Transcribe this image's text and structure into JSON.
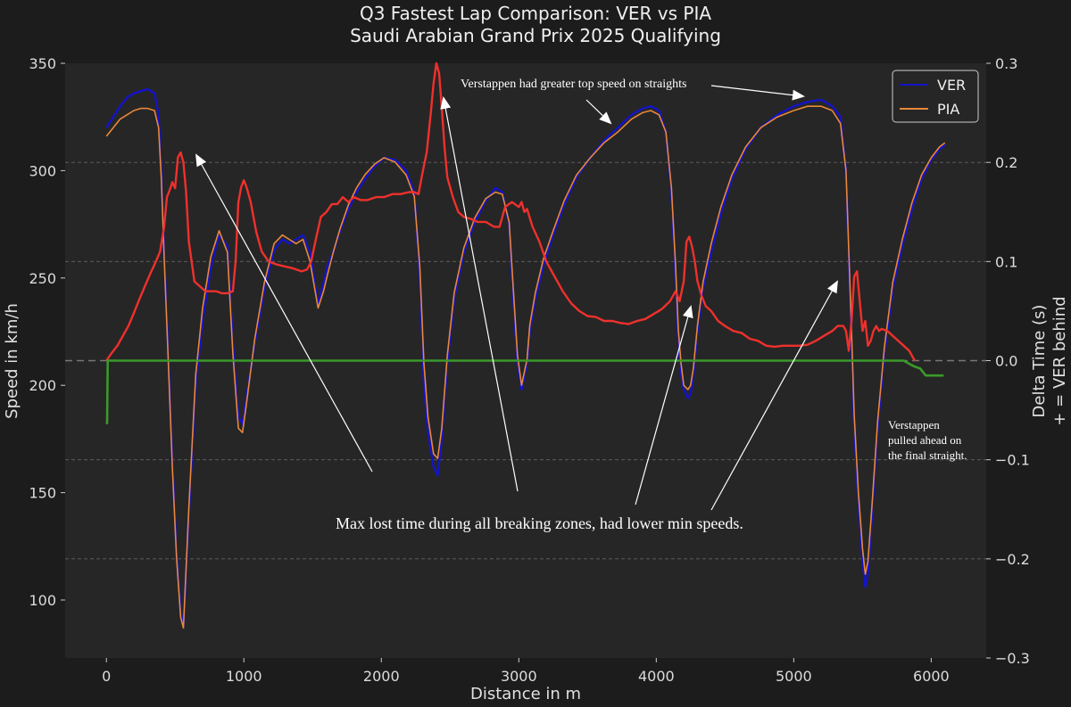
{
  "colors": {
    "background": "#1c1c1c",
    "plot_bg": "#262626",
    "ver": "#1414c8",
    "pia": "#e8883a",
    "delta": "#f0302c",
    "delta_neg": "#3a9a2a",
    "grid": "#8c8c8c",
    "text": "#e6e6e6"
  },
  "chart_data": {
    "type": "line",
    "title": "Q3 Fastest Lap Comparison: VER vs PIA",
    "subtitle": "Saudi Arabian Grand Prix 2025 Qualifying",
    "xlabel": "Distance in m",
    "ylabel": "Speed in km/h",
    "y2label_line1": "Delta Time (s)",
    "y2label_line2": "+ = VER behind",
    "xlim": [
      -300,
      6400
    ],
    "ylim": [
      73,
      350
    ],
    "y2lim": [
      -0.3,
      0.3
    ],
    "xticks": [
      0,
      1000,
      2000,
      3000,
      4000,
      5000,
      6000
    ],
    "yticks": [
      100,
      150,
      200,
      250,
      300,
      350
    ],
    "y2ticks": [
      -0.3,
      -0.2,
      -0.1,
      0.0,
      0.1,
      0.2,
      0.3
    ],
    "y2tick_labels": [
      "−0.3",
      "−0.2",
      "−0.1",
      "0.0",
      "0.1",
      "0.2",
      "0.3"
    ],
    "y2_gridlines": [
      -0.2,
      -0.1,
      0.0,
      0.1,
      0.2
    ],
    "legend": {
      "position": "top-right",
      "entries": [
        "VER",
        "PIA"
      ]
    },
    "series": [
      {
        "name": "VER",
        "x": [
          0,
          50,
          100,
          150,
          200,
          250,
          300,
          350,
          380,
          400,
          420,
          450,
          480,
          510,
          540,
          560,
          600,
          650,
          700,
          760,
          820,
          880,
          920,
          960,
          990,
          1020,
          1080,
          1150,
          1220,
          1280,
          1330,
          1380,
          1430,
          1480,
          1540,
          1580,
          1610,
          1650,
          1700,
          1760,
          1820,
          1880,
          1950,
          2020,
          2100,
          2180,
          2240,
          2280,
          2310,
          2340,
          2380,
          2410,
          2440,
          2480,
          2530,
          2600,
          2680,
          2760,
          2830,
          2880,
          2930,
          2960,
          2990,
          3020,
          3060,
          3080,
          3120,
          3180,
          3250,
          3330,
          3420,
          3520,
          3620,
          3720,
          3820,
          3900,
          3960,
          4020,
          4070,
          4110,
          4140,
          4160,
          4180,
          4200,
          4230,
          4250,
          4270,
          4300,
          4340,
          4400,
          4470,
          4550,
          4650,
          4760,
          4880,
          5000,
          5100,
          5200,
          5280,
          5340,
          5380,
          5400,
          5420,
          5440,
          5470,
          5500,
          5520,
          5540,
          5570,
          5610,
          5660,
          5720,
          5790,
          5860,
          5930,
          6000,
          6060,
          6100
        ],
        "values": [
          320,
          325,
          330,
          334,
          336,
          337,
          338,
          336,
          326,
          300,
          262,
          215,
          165,
          122,
          95,
          88,
          140,
          200,
          230,
          255,
          270,
          265,
          220,
          185,
          182,
          195,
          220,
          245,
          263,
          268,
          266,
          268,
          270,
          262,
          238,
          248,
          256,
          262,
          272,
          282,
          290,
          296,
          302,
          306,
          305,
          300,
          290,
          250,
          200,
          178,
          162,
          158,
          175,
          210,
          240,
          262,
          276,
          286,
          292,
          290,
          275,
          240,
          210,
          198,
          210,
          225,
          240,
          256,
          270,
          284,
          297,
          306,
          314,
          320,
          326,
          329,
          330,
          328,
          318,
          290,
          250,
          220,
          205,
          198,
          194,
          196,
          205,
          225,
          245,
          262,
          280,
          296,
          310,
          320,
          326,
          330,
          332,
          333,
          330,
          325,
          300,
          260,
          220,
          180,
          145,
          118,
          106,
          112,
          140,
          180,
          215,
          245,
          265,
          282,
          296,
          305,
          310,
          312
        ]
      },
      {
        "name": "PIA",
        "x": [
          0,
          50,
          100,
          150,
          200,
          250,
          300,
          350,
          380,
          400,
          420,
          450,
          480,
          510,
          540,
          560,
          600,
          650,
          700,
          760,
          820,
          880,
          920,
          960,
          990,
          1020,
          1080,
          1150,
          1220,
          1280,
          1330,
          1380,
          1430,
          1480,
          1540,
          1580,
          1610,
          1650,
          1700,
          1760,
          1820,
          1880,
          1950,
          2020,
          2100,
          2180,
          2240,
          2280,
          2310,
          2340,
          2380,
          2410,
          2440,
          2480,
          2530,
          2600,
          2680,
          2760,
          2830,
          2880,
          2930,
          2960,
          2990,
          3020,
          3060,
          3080,
          3120,
          3180,
          3250,
          3330,
          3420,
          3520,
          3620,
          3720,
          3820,
          3900,
          3960,
          4020,
          4070,
          4110,
          4140,
          4160,
          4180,
          4200,
          4230,
          4250,
          4270,
          4300,
          4340,
          4400,
          4470,
          4550,
          4650,
          4760,
          4880,
          5000,
          5100,
          5200,
          5280,
          5340,
          5380,
          5400,
          5420,
          5440,
          5470,
          5500,
          5520,
          5540,
          5570,
          5610,
          5660,
          5720,
          5790,
          5860,
          5930,
          6000,
          6060,
          6100
        ],
        "values": [
          316,
          320,
          324,
          326,
          328,
          329,
          329,
          328,
          320,
          296,
          260,
          212,
          162,
          120,
          92,
          87,
          143,
          205,
          236,
          260,
          272,
          262,
          215,
          180,
          178,
          192,
          222,
          248,
          266,
          270,
          268,
          266,
          268,
          258,
          236,
          244,
          252,
          262,
          273,
          284,
          292,
          298,
          303,
          306,
          304,
          298,
          288,
          255,
          210,
          185,
          168,
          166,
          180,
          214,
          243,
          264,
          278,
          287,
          290,
          289,
          276,
          245,
          214,
          200,
          212,
          228,
          243,
          259,
          272,
          286,
          298,
          306,
          313,
          318,
          324,
          327,
          328,
          326,
          318,
          292,
          256,
          226,
          210,
          200,
          198,
          200,
          208,
          228,
          248,
          266,
          283,
          298,
          311,
          320,
          325,
          328,
          330,
          330,
          328,
          322,
          300,
          263,
          225,
          186,
          150,
          124,
          112,
          118,
          145,
          183,
          218,
          248,
          268,
          285,
          298,
          306,
          311,
          313
        ]
      },
      {
        "name": "Delta",
        "x": [
          0,
          40,
          80,
          120,
          160,
          200,
          240,
          280,
          320,
          360,
          390,
          420,
          440,
          460,
          480,
          500,
          520,
          540,
          560,
          580,
          600,
          640,
          680,
          720,
          760,
          800,
          840,
          880,
          920,
          940,
          960,
          980,
          1000,
          1020,
          1050,
          1090,
          1130,
          1180,
          1240,
          1300,
          1360,
          1420,
          1460,
          1490,
          1520,
          1560,
          1600,
          1640,
          1680,
          1720,
          1760,
          1800,
          1850,
          1900,
          1960,
          2020,
          2080,
          2140,
          2200,
          2240,
          2270,
          2300,
          2330,
          2360,
          2380,
          2400,
          2420,
          2440,
          2460,
          2480,
          2520,
          2560,
          2600,
          2650,
          2700,
          2760,
          2820,
          2860,
          2900,
          2950,
          3000,
          3020,
          3040,
          3060,
          3100,
          3150,
          3200,
          3260,
          3320,
          3380,
          3440,
          3500,
          3560,
          3620,
          3680,
          3740,
          3800,
          3860,
          3920,
          3980,
          4040,
          4100,
          4140,
          4170,
          4200,
          4220,
          4240,
          4260,
          4280,
          4300,
          4330,
          4360,
          4400,
          4450,
          4500,
          4560,
          4620,
          4680,
          4740,
          4800,
          4860,
          4920,
          4980,
          5040,
          5100,
          5160,
          5220,
          5280,
          5320,
          5360,
          5380,
          5400,
          5420,
          5440,
          5460,
          5480,
          5500,
          5520,
          5540,
          5560,
          5580,
          5600,
          5620,
          5640,
          5680,
          5720,
          5760,
          5800,
          5840,
          5880
        ],
        "values": [
          0.0,
          0.008,
          0.015,
          0.025,
          0.035,
          0.048,
          0.062,
          0.075,
          0.088,
          0.1,
          0.11,
          0.135,
          0.165,
          0.172,
          0.18,
          0.174,
          0.205,
          0.21,
          0.2,
          0.17,
          0.12,
          0.08,
          0.075,
          0.07,
          0.07,
          0.07,
          0.068,
          0.068,
          0.07,
          0.1,
          0.16,
          0.175,
          0.182,
          0.175,
          0.16,
          0.13,
          0.11,
          0.1,
          0.097,
          0.095,
          0.093,
          0.09,
          0.092,
          0.1,
          0.12,
          0.145,
          0.15,
          0.158,
          0.158,
          0.165,
          0.16,
          0.165,
          0.162,
          0.162,
          0.165,
          0.165,
          0.168,
          0.168,
          0.17,
          0.17,
          0.168,
          0.19,
          0.21,
          0.25,
          0.28,
          0.3,
          0.29,
          0.255,
          0.215,
          0.185,
          0.165,
          0.15,
          0.145,
          0.143,
          0.14,
          0.14,
          0.135,
          0.135,
          0.155,
          0.16,
          0.155,
          0.16,
          0.15,
          0.153,
          0.135,
          0.12,
          0.1,
          0.085,
          0.07,
          0.058,
          0.05,
          0.045,
          0.044,
          0.04,
          0.04,
          0.038,
          0.037,
          0.04,
          0.042,
          0.047,
          0.052,
          0.06,
          0.07,
          0.06,
          0.08,
          0.12,
          0.125,
          0.115,
          0.1,
          0.08,
          0.065,
          0.055,
          0.05,
          0.04,
          0.035,
          0.03,
          0.028,
          0.022,
          0.02,
          0.015,
          0.014,
          0.015,
          0.015,
          0.015,
          0.016,
          0.02,
          0.025,
          0.03,
          0.035,
          0.035,
          0.03,
          0.01,
          0.04,
          0.085,
          0.09,
          0.06,
          0.03,
          0.04,
          0.015,
          0.02,
          0.03,
          0.035,
          0.03,
          0.032,
          0.03,
          0.025,
          0.02,
          0.015,
          0.01,
          0.0
        ]
      },
      {
        "name": "Delta-negative",
        "x": [
          0,
          5,
          10,
          5800,
          5850,
          5880,
          5920,
          5960,
          6000,
          6060,
          6090
        ],
        "values": [
          -0.064,
          -0.063,
          0.0,
          0.0,
          -0.004,
          -0.006,
          -0.008,
          -0.015,
          -0.015,
          -0.015,
          -0.015
        ]
      }
    ],
    "annotations": [
      {
        "id": "top-speed",
        "text": "Verstappen had greater top speed on straights"
      },
      {
        "id": "braking",
        "text": "Max lost time during all breaking zones, had lower min speeds."
      },
      {
        "id": "final-line1",
        "text": "Verstappen"
      },
      {
        "id": "final-line2",
        "text": "pulled ahead on"
      },
      {
        "id": "final-line3",
        "text": "the final straight."
      }
    ]
  }
}
